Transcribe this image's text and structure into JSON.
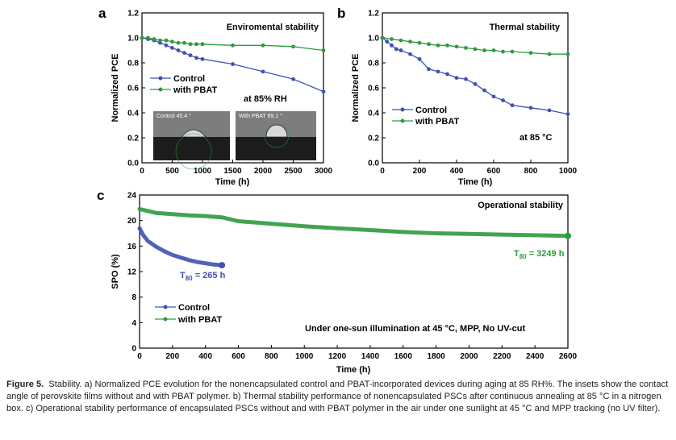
{
  "figure": {
    "caption_label": "Figure 5.",
    "caption_text": "Stability. a) Normalized PCE evolution for the nonencapsulated control and PBAT-incorporated devices during aging at 85 RH%. The insets show the contact angle of perovskite films without and with PBAT polymer. b) Thermal stability performance of nonencapsulated PSCs after continuous annealing at 85 °C in a nitrogen box. c) Operational stability performance of encapsulated PSCs without and with PBAT polymer in the air under one sunlight at 45 °C and MPP tracking (no UV filter)."
  },
  "colors": {
    "control": "#3f51b5",
    "pbat": "#2e9a3e"
  },
  "chart_data": [
    {
      "panel": "a",
      "type": "line",
      "title": "Enviromental stability",
      "xlabel": "Time (h)",
      "ylabel": "Normalized PCE",
      "xlim": [
        0,
        3000
      ],
      "ylim": [
        0,
        1.2
      ],
      "xticks": [
        "0",
        "500",
        "1000",
        "1500",
        "2000",
        "2500",
        "3000"
      ],
      "yticks": [
        "0.0",
        "0.2",
        "0.4",
        "0.6",
        "0.8",
        "1.0",
        "1.2"
      ],
      "legend": [
        "Control",
        "with PBAT"
      ],
      "annotation": "at 85% RH",
      "inset_labels": [
        "Control  45.4 °",
        "With PBAT  69.1 °"
      ],
      "series": [
        {
          "name": "Control",
          "x": [
            0,
            100,
            200,
            300,
            400,
            500,
            600,
            700,
            800,
            900,
            1000,
            1500,
            2000,
            2500,
            3000
          ],
          "y": [
            1.0,
            0.99,
            0.98,
            0.96,
            0.94,
            0.92,
            0.9,
            0.88,
            0.86,
            0.84,
            0.83,
            0.79,
            0.73,
            0.67,
            0.57
          ]
        },
        {
          "name": "with PBAT",
          "x": [
            0,
            100,
            200,
            300,
            400,
            500,
            600,
            700,
            800,
            900,
            1000,
            1500,
            2000,
            2500,
            3000
          ],
          "y": [
            1.0,
            1.0,
            0.99,
            0.98,
            0.98,
            0.97,
            0.96,
            0.96,
            0.95,
            0.95,
            0.95,
            0.94,
            0.94,
            0.93,
            0.9
          ]
        }
      ]
    },
    {
      "panel": "b",
      "type": "line",
      "title": "Thermal stability",
      "xlabel": "Time (h)",
      "ylabel": "Normalized PCE",
      "xlim": [
        0,
        1000
      ],
      "ylim": [
        0,
        1.2
      ],
      "xticks": [
        "0",
        "200",
        "400",
        "600",
        "800",
        "1000"
      ],
      "yticks": [
        "0.0",
        "0.2",
        "0.4",
        "0.6",
        "0.8",
        "1.0",
        "1.2"
      ],
      "legend": [
        "Control",
        "with PBAT"
      ],
      "annotation": "at 85 °C",
      "series": [
        {
          "name": "Control",
          "x": [
            0,
            25,
            50,
            75,
            100,
            150,
            200,
            250,
            300,
            350,
            400,
            450,
            500,
            550,
            600,
            650,
            700,
            800,
            900,
            1000
          ],
          "y": [
            1.0,
            0.97,
            0.94,
            0.91,
            0.9,
            0.87,
            0.83,
            0.75,
            0.73,
            0.71,
            0.68,
            0.67,
            0.63,
            0.58,
            0.53,
            0.5,
            0.46,
            0.44,
            0.42,
            0.39
          ]
        },
        {
          "name": "with PBAT",
          "x": [
            0,
            50,
            100,
            150,
            200,
            250,
            300,
            350,
            400,
            450,
            500,
            550,
            600,
            650,
            700,
            800,
            900,
            1000
          ],
          "y": [
            1.0,
            0.99,
            0.98,
            0.97,
            0.96,
            0.95,
            0.94,
            0.94,
            0.93,
            0.92,
            0.91,
            0.9,
            0.9,
            0.89,
            0.89,
            0.88,
            0.87,
            0.87
          ]
        }
      ]
    },
    {
      "panel": "c",
      "type": "line",
      "title": "Operational stability",
      "xlabel": "Time (h)",
      "ylabel": "SPO (%)",
      "xlim": [
        0,
        2600
      ],
      "ylim": [
        0,
        24
      ],
      "xticks": [
        "0",
        "200",
        "400",
        "600",
        "800",
        "1000",
        "1200",
        "1400",
        "1600",
        "1800",
        "2000",
        "2200",
        "2400",
        "2600"
      ],
      "yticks": [
        "0",
        "4",
        "8",
        "12",
        "16",
        "20",
        "24"
      ],
      "legend": [
        "Control",
        "with PBAT"
      ],
      "annotation": "Under one-sun illumination at 45 °C, MPP, No UV-cut",
      "t80_control": {
        "prefix": "T",
        "sub": "80",
        "value": " = 265 h"
      },
      "t80_pbat": {
        "prefix": "T",
        "sub": "80",
        "value": " = 3249 h"
      },
      "series": [
        {
          "name": "Control",
          "x": [
            0,
            20,
            50,
            100,
            150,
            200,
            250,
            300,
            350,
            400,
            450,
            500
          ],
          "y": [
            18.8,
            17.8,
            16.8,
            15.9,
            15.2,
            14.6,
            14.2,
            13.8,
            13.5,
            13.3,
            13.1,
            13.0
          ]
        },
        {
          "name": "with PBAT",
          "x": [
            0,
            100,
            200,
            300,
            400,
            500,
            600,
            800,
            1000,
            1200,
            1400,
            1600,
            1800,
            2000,
            2200,
            2400,
            2600
          ],
          "y": [
            21.8,
            21.2,
            21.0,
            20.8,
            20.7,
            20.5,
            19.9,
            19.5,
            19.1,
            18.8,
            18.5,
            18.2,
            18.0,
            17.9,
            17.8,
            17.7,
            17.6
          ]
        }
      ]
    }
  ]
}
